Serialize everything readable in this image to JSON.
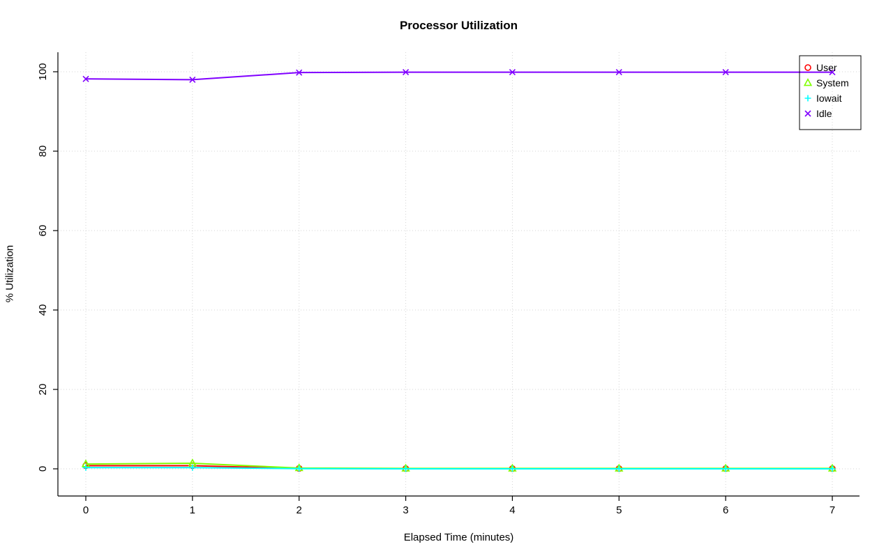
{
  "chart_data": {
    "type": "line",
    "title": "Processor Utilization",
    "xlabel": "Elapsed Time (minutes)",
    "ylabel": "% Utilization",
    "x": [
      0,
      1,
      2,
      3,
      4,
      5,
      6,
      7
    ],
    "x_ticks": [
      0,
      1,
      2,
      3,
      4,
      5,
      6,
      7
    ],
    "y_ticks": [
      0,
      20,
      40,
      60,
      80,
      100
    ],
    "xlim": [
      0,
      7
    ],
    "ylim": [
      0,
      100
    ],
    "grid": true,
    "grid_style": "dotted",
    "grid_color": "#D3D3D3",
    "legend_position": "top-right",
    "series": [
      {
        "name": "User",
        "color": "#FF0000",
        "marker": "circle",
        "values": [
          0.8,
          0.8,
          0.1,
          0.05,
          0.05,
          0.05,
          0.05,
          0.05
        ]
      },
      {
        "name": "System",
        "color": "#80FF00",
        "marker": "triangle",
        "values": [
          1.2,
          1.4,
          0.2,
          0.1,
          0.1,
          0.1,
          0.1,
          0.1
        ]
      },
      {
        "name": "Iowait",
        "color": "#00FFFF",
        "marker": "plus",
        "values": [
          0.3,
          0.3,
          0.05,
          0.0,
          0.0,
          0.0,
          0.0,
          0.0
        ]
      },
      {
        "name": "Idle",
        "color": "#8000FF",
        "marker": "x",
        "values": [
          98.2,
          98.0,
          99.8,
          99.9,
          99.9,
          99.9,
          99.9,
          99.9
        ]
      }
    ]
  }
}
